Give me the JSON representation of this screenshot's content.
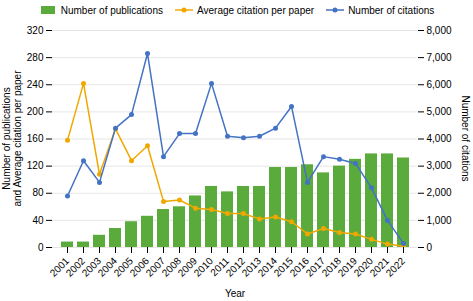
{
  "chart_data": {
    "type": "bar",
    "xlabel": "Year",
    "ylabel": "Number of publications\nand Average citation per paper",
    "y2label": "Number of citations",
    "categories": [
      "2001",
      "2002",
      "2003",
      "2004",
      "2005",
      "2006",
      "2007",
      "2008",
      "2009",
      "2010",
      "2011",
      "2012",
      "2013",
      "2014",
      "2015",
      "2016",
      "2017",
      "2018",
      "2019",
      "2020",
      "2021",
      "2022"
    ],
    "series": [
      {
        "name": "Number of publications",
        "type": "bar",
        "color": "#5aaa3c",
        "values": [
          8,
          8,
          18,
          28,
          38,
          46,
          56,
          60,
          76,
          90,
          82,
          90,
          90,
          118,
          118,
          122,
          110,
          120,
          130,
          138,
          138,
          132
        ]
      },
      {
        "name": "Average citation per paper",
        "type": "line",
        "marker": "circle",
        "color": "#f0a800",
        "values": [
          158,
          242,
          108,
          175,
          128,
          150,
          68,
          70,
          58,
          56,
          50,
          50,
          42,
          45,
          38,
          20,
          28,
          22,
          20,
          12,
          5,
          2
        ]
      },
      {
        "name": "Number of citations",
        "type": "line",
        "marker": "circle",
        "color": "#4472c4",
        "axis": "y2",
        "values": [
          1900,
          3200,
          2400,
          4400,
          4900,
          7150,
          3350,
          4200,
          4200,
          6050,
          4100,
          4050,
          4100,
          4400,
          5200,
          2400,
          3350,
          3250,
          3100,
          2200,
          1000,
          150
        ]
      }
    ],
    "ylim": [
      0,
      320
    ],
    "yticks": [
      0,
      40,
      80,
      120,
      160,
      200,
      240,
      280,
      320
    ],
    "y2lim": [
      0,
      8000
    ],
    "y2ticks": [
      0,
      1000,
      2000,
      3000,
      4000,
      5000,
      6000,
      7000,
      8000
    ],
    "grid": true,
    "legend": "top"
  }
}
